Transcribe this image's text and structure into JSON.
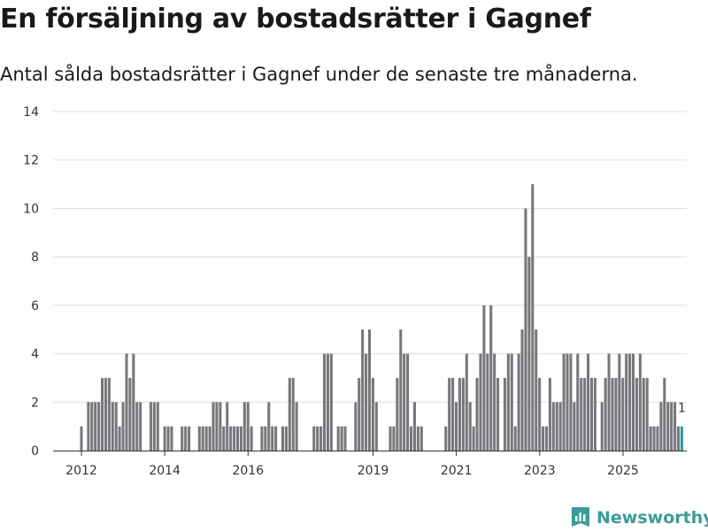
{
  "chart_data": {
    "type": "bar",
    "title": "En försäljning av bostadsrätter i Gagnef",
    "subtitle": "Antal sålda bostadsrätter i Gagnef under de senaste tre månaderna.",
    "xlabel": "",
    "ylabel": "",
    "ylim": [
      0,
      14
    ],
    "yticks": [
      0,
      2,
      4,
      6,
      8,
      10,
      12,
      14
    ],
    "x_tick_labels": [
      {
        "label": "2012",
        "t": 2012.0
      },
      {
        "label": "2014",
        "t": 2014.0
      },
      {
        "label": "2016",
        "t": 2016.0
      },
      {
        "label": "2019",
        "t": 2019.0
      },
      {
        "label": "2021",
        "t": 2021.0
      },
      {
        "label": "2023",
        "t": 2023.0
      },
      {
        "label": "2025",
        "t": 2025.0
      }
    ],
    "x_start": 2012.0,
    "x_step": 0.0833,
    "values": [
      1,
      0,
      2,
      2,
      2,
      2,
      3,
      3,
      3,
      2,
      2,
      1,
      2,
      4,
      3,
      4,
      2,
      2,
      0,
      0,
      2,
      2,
      2,
      0,
      1,
      1,
      1,
      0,
      0,
      1,
      1,
      1,
      0,
      0,
      1,
      1,
      1,
      1,
      2,
      2,
      2,
      1,
      2,
      1,
      1,
      1,
      1,
      2,
      2,
      1,
      0,
      0,
      1,
      1,
      2,
      1,
      1,
      0,
      1,
      1,
      3,
      3,
      2,
      0,
      0,
      0,
      0,
      1,
      1,
      1,
      4,
      4,
      4,
      0,
      1,
      1,
      1,
      0,
      0,
      2,
      3,
      5,
      4,
      5,
      3,
      2,
      0,
      0,
      0,
      1,
      1,
      3,
      5,
      4,
      4,
      1,
      2,
      1,
      1,
      0,
      0,
      0,
      0,
      0,
      0,
      1,
      3,
      3,
      2,
      3,
      3,
      4,
      2,
      1,
      3,
      4,
      6,
      4,
      6,
      4,
      3,
      0,
      3,
      4,
      4,
      1,
      4,
      5,
      10,
      8,
      11,
      5,
      3,
      1,
      1,
      3,
      2,
      2,
      2,
      4,
      4,
      4,
      2,
      4,
      3,
      3,
      4,
      3,
      3,
      0,
      2,
      3,
      4,
      3,
      3,
      4,
      3,
      4,
      4,
      4,
      3,
      4,
      3,
      3,
      1,
      1,
      1,
      2,
      3,
      2,
      2,
      2,
      1,
      1
    ],
    "highlight_last": true,
    "last_label": "1",
    "colors": {
      "bar": "#77777c",
      "highlight": "#2b9c98",
      "grid": "#dddddd",
      "axis": "#333333"
    }
  },
  "brand": {
    "name": "Newsworthy",
    "icon": "newsworthy-logo-icon",
    "color": "#3a9c98"
  }
}
